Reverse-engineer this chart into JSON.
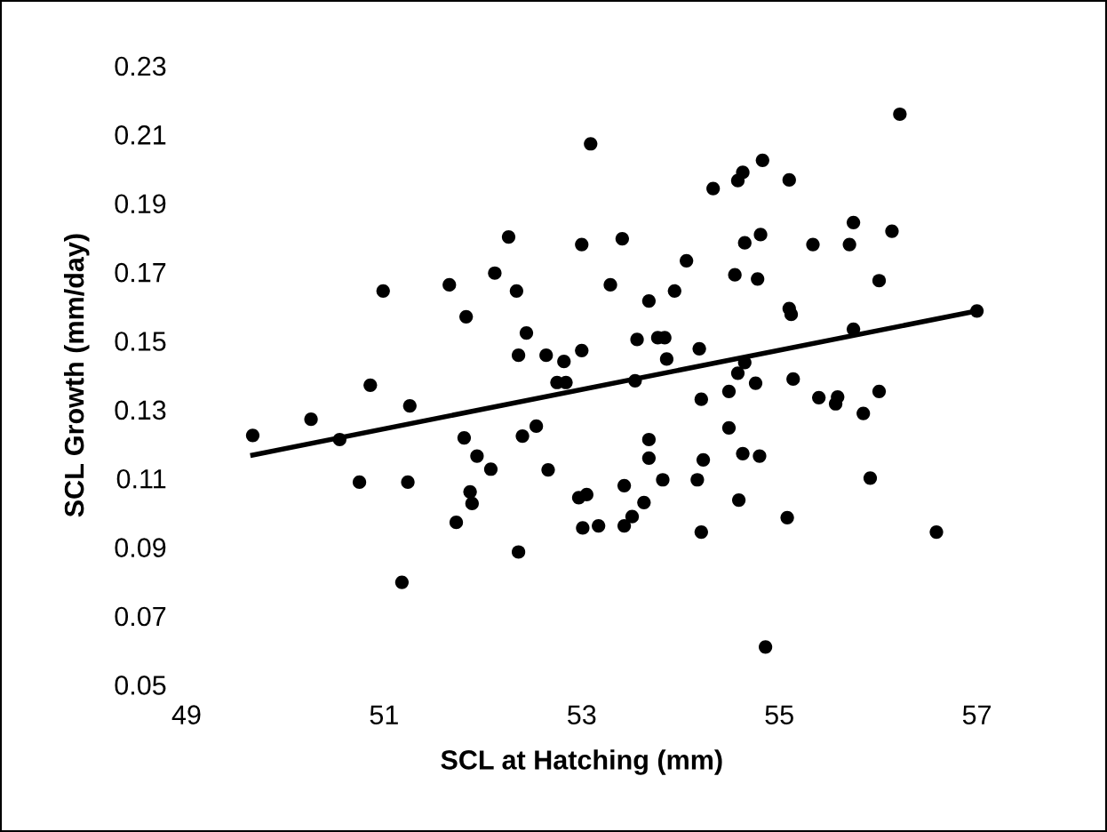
{
  "chart_data": {
    "type": "scatter",
    "xlabel": "SCL at Hatching (mm)",
    "ylabel": "SCL Growth (mm/day)",
    "xlim": [
      49,
      57
    ],
    "ylim": [
      0.05,
      0.23
    ],
    "xticks": [
      49,
      51,
      53,
      55,
      57
    ],
    "yticks": [
      0.05,
      0.07,
      0.09,
      0.11,
      0.13,
      0.15,
      0.17,
      0.19,
      0.21,
      0.23
    ],
    "grid": false,
    "legend": false,
    "marker": "circle",
    "series": [
      {
        "color": "#000000",
        "x": [
          53.09,
          52.26,
          53.0,
          53.41,
          52.12,
          51.66,
          50.99,
          52.34,
          53.29,
          51.83,
          52.44,
          52.36,
          52.64,
          52.82,
          53.0,
          52.75,
          52.84,
          50.86,
          51.26,
          56.22,
          54.83,
          54.63,
          54.58,
          54.33,
          55.1,
          54.65,
          54.81,
          55.34,
          55.71,
          55.75,
          56.14,
          54.06,
          53.94,
          53.68,
          54.55,
          54.78,
          56.01,
          55.1,
          55.12,
          55.75,
          57,
          53.56,
          53.77,
          53.84,
          54.19,
          53.86,
          54.65,
          54.58,
          53.54,
          55.14,
          54.76,
          54.49,
          54.21,
          55.4,
          55.59,
          55.57,
          56.01,
          55.85,
          53.68,
          53.68,
          54.23,
          54.49,
          54.63,
          54.8,
          53.82,
          54.17,
          55.92,
          53.43,
          52.97,
          53.05,
          53.63,
          54.59,
          53.17,
          53.43,
          53.51,
          54.21,
          55.08,
          56.59,
          54.86,
          49.67,
          50.26,
          50.55,
          50.75,
          51.24,
          51.18,
          51.81,
          51.94,
          52.08,
          51.87,
          51.89,
          51.73,
          52.4,
          52.54,
          52.66,
          52.36,
          53.01
        ],
        "values": [
          0.2073,
          0.1802,
          0.178,
          0.1797,
          0.1697,
          0.1663,
          0.1645,
          0.1645,
          0.1663,
          0.157,
          0.1523,
          0.1458,
          0.1458,
          0.144,
          0.1472,
          0.1379,
          0.1379,
          0.1371,
          0.1311,
          0.2159,
          0.2025,
          0.199,
          0.1966,
          0.1943,
          0.1968,
          0.1785,
          0.1809,
          0.178,
          0.178,
          0.1844,
          0.1819,
          0.1733,
          0.1645,
          0.1616,
          0.1692,
          0.168,
          0.1675,
          0.1594,
          0.1577,
          0.1534,
          0.1587,
          0.1504,
          0.1509,
          0.1509,
          0.1477,
          0.1447,
          0.1437,
          0.1406,
          0.1384,
          0.1389,
          0.1377,
          0.1353,
          0.133,
          0.1335,
          0.1337,
          0.1317,
          0.1353,
          0.1289,
          0.1213,
          0.1159,
          0.1154,
          0.1247,
          0.1172,
          0.1165,
          0.1096,
          0.1096,
          0.1101,
          0.1079,
          0.1044,
          0.1053,
          0.103,
          0.1037,
          0.0962,
          0.0962,
          0.0989,
          0.0944,
          0.0986,
          0.0944,
          0.061,
          0.1225,
          0.1272,
          0.1213,
          0.1089,
          0.1089,
          0.0798,
          0.1218,
          0.1165,
          0.1127,
          0.1061,
          0.1027,
          0.0972,
          0.1223,
          0.1252,
          0.1125,
          0.0886,
          0.0956
        ]
      },
      {
        "type": "line",
        "color": "#000000",
        "marker": "none",
        "line_style": "solid",
        "x": [
          49.67,
          57
        ],
        "values": [
          0.1168,
          0.1587
        ]
      }
    ]
  }
}
